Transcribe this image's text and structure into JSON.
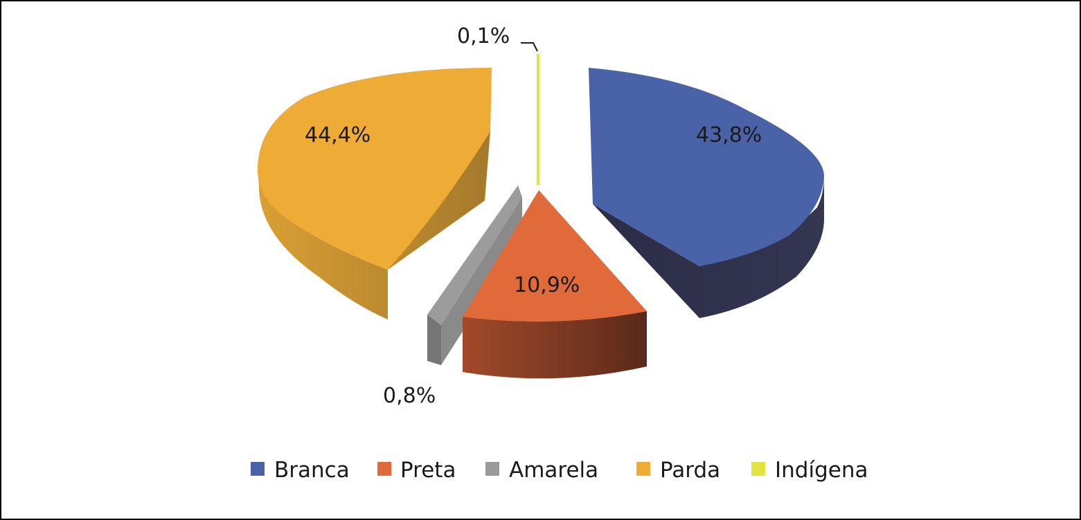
{
  "chart_data": {
    "type": "pie",
    "title": "",
    "slices": [
      {
        "name": "Branca",
        "value": 43.8,
        "label": "43,8%",
        "color": "#4a63a8",
        "side": "#2e2f4a"
      },
      {
        "name": "Preta",
        "value": 10.9,
        "label": "10,9%",
        "color": "#e06a3a",
        "side": "#7a3420"
      },
      {
        "name": "Amarela",
        "value": 0.8,
        "label": "0,8%",
        "color": "#9a9a9a",
        "side": "#707070"
      },
      {
        "name": "Parda",
        "value": 44.4,
        "label": "44,4%",
        "color": "#eeab36",
        "side": "#b48530"
      },
      {
        "name": "Indígena",
        "value": 0.1,
        "label": "0,1%",
        "color": "#e3e340",
        "side": "#a8a828"
      }
    ],
    "legend_position": "bottom",
    "three_d": true,
    "exploded": true
  }
}
